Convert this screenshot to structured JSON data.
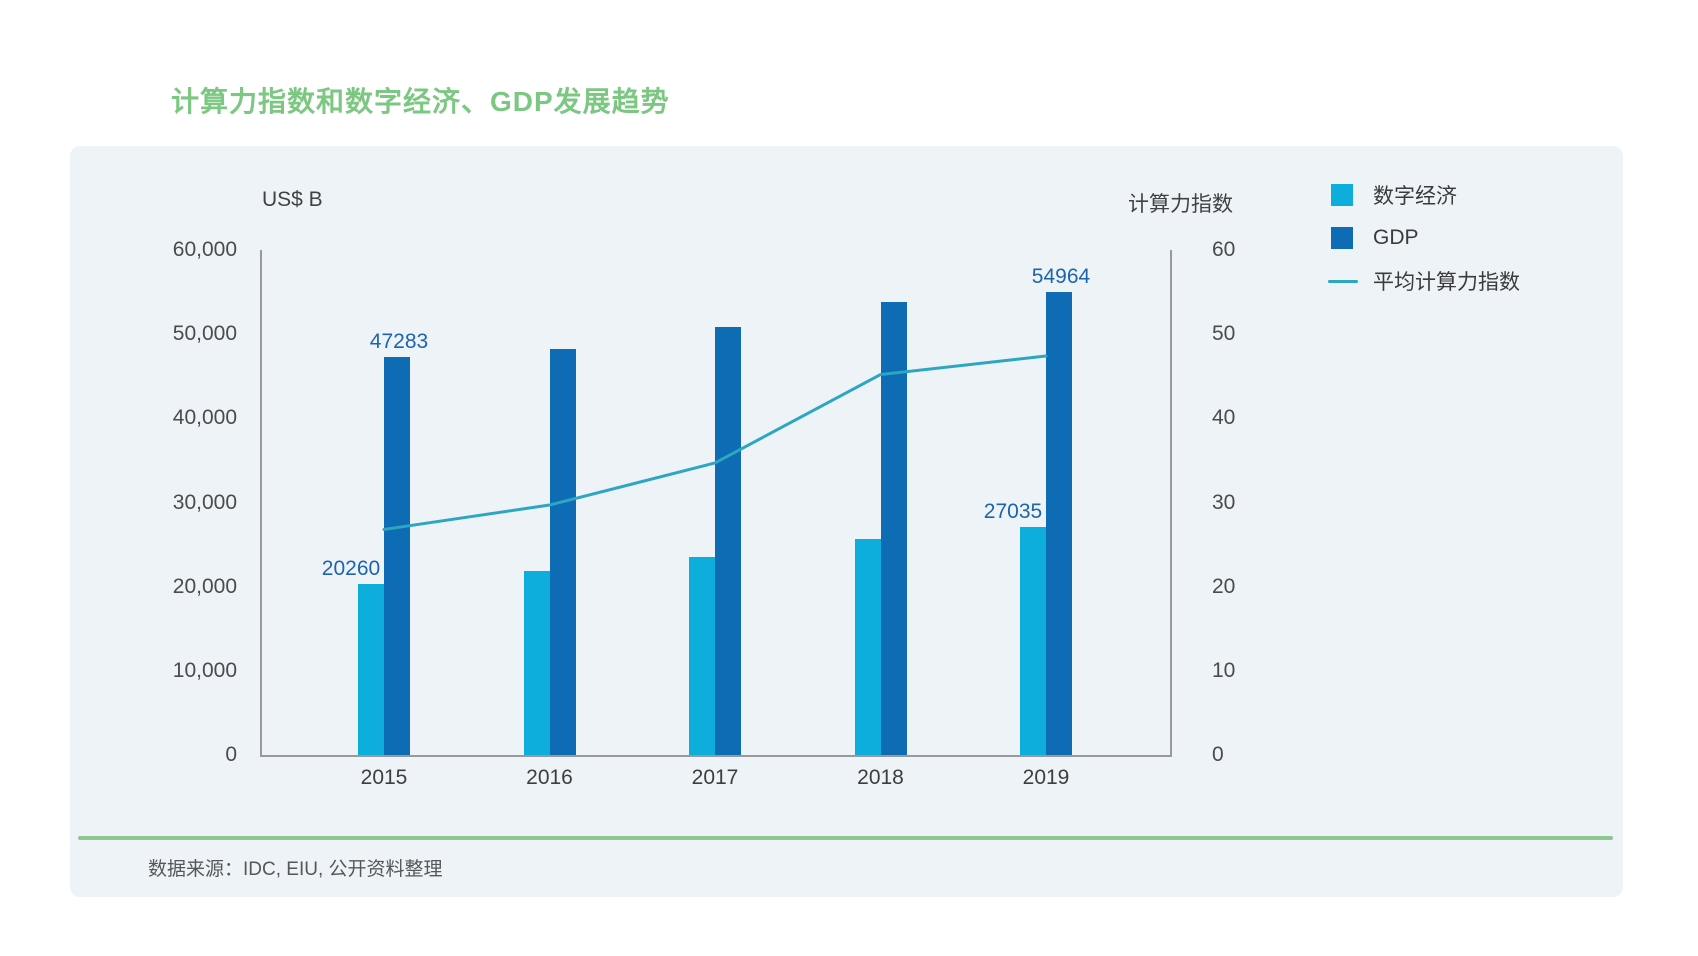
{
  "title": "计算力指数和数字经济、GDP发展趋势",
  "left_axis_title": "US$ B",
  "right_axis_title": "计算力指数",
  "legend": [
    {
      "label": "数字经济",
      "swatch": "square",
      "color": "#0daedb"
    },
    {
      "label": "GDP",
      "swatch": "square",
      "color": "#0e6cb4"
    },
    {
      "label": "平均计算力指数",
      "swatch": "line",
      "color": "#2da6c1"
    }
  ],
  "footer": {
    "source_label": "数据来源：IDC, EIU, 公开资料整理"
  },
  "colors": {
    "digital_bar": "#0daedb",
    "gdp_bar": "#0e6cb4",
    "index_line": "#2da6c1",
    "data_label": "#1c65ae",
    "title_green": "#7cc781",
    "divider_green": "#8cc88e",
    "panel_background": "#edf3f7",
    "axis_gray": "#97999c"
  },
  "chart_data": {
    "type": "bar",
    "subtype": "grouped-bars-with-line",
    "categories": [
      "2015",
      "2016",
      "2017",
      "2018",
      "2019"
    ],
    "series": [
      {
        "name": "数字经济",
        "type": "bar",
        "axis": "left",
        "color": "#0daedb",
        "values": [
          20260,
          21900,
          23500,
          25700,
          27035
        ]
      },
      {
        "name": "GDP",
        "type": "bar",
        "axis": "left",
        "color": "#0e6cb4",
        "values": [
          47283,
          48200,
          50900,
          53800,
          54964
        ]
      },
      {
        "name": "平均计算力指数",
        "type": "line",
        "axis": "right",
        "color": "#2da6c1",
        "values": [
          26.8,
          29.7,
          34.7,
          45.2,
          47.4
        ]
      }
    ],
    "data_labels": [
      {
        "series": "数字经济",
        "category": "2015",
        "text": "20260"
      },
      {
        "series": "GDP",
        "category": "2015",
        "text": "47283"
      },
      {
        "series": "数字经济",
        "category": "2019",
        "text": "27035"
      },
      {
        "series": "GDP",
        "category": "2019",
        "text": "54964"
      }
    ],
    "left_axis": {
      "title": "US$ B",
      "min": 0,
      "max": 60000,
      "step": 10000,
      "ticks": [
        "0",
        "10,000",
        "20,000",
        "30,000",
        "40,000",
        "50,000",
        "60,000"
      ]
    },
    "right_axis": {
      "title": "计算力指数",
      "min": 0,
      "max": 60,
      "step": 10,
      "ticks": [
        "0",
        "10",
        "20",
        "30",
        "40",
        "50",
        "60"
      ]
    },
    "grid": false,
    "legend_position": "top-right",
    "source": "数据来源：IDC, EIU, 公开资料整理"
  }
}
